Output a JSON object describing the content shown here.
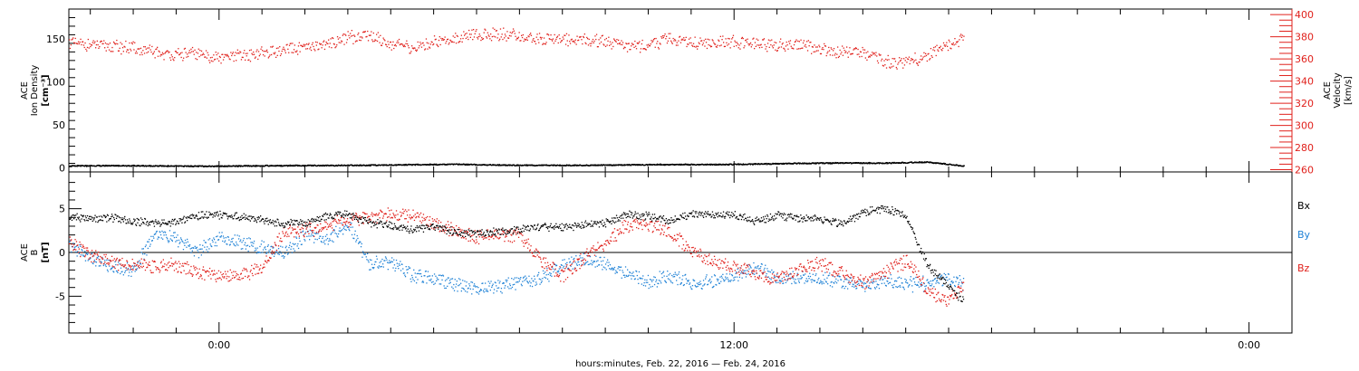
{
  "chart_data": [
    {
      "type": "scatter",
      "panel": "top",
      "ylabel_left": [
        "ACE",
        "Ion Density",
        "[cm⁻³]"
      ],
      "ylabel_right": [
        "ACE",
        "Velocity",
        "[km/s]"
      ],
      "ylim_left": [
        -5,
        185
      ],
      "yticks_left": [
        0,
        50,
        100,
        150
      ],
      "ylim_right": [
        258,
        405
      ],
      "yticks_right": [
        260,
        280,
        300,
        320,
        340,
        360,
        380,
        400
      ],
      "colors": {
        "density": "#000000",
        "velocity": "#e0201b"
      },
      "series": [
        {
          "name": "Ion Density",
          "axis": "left",
          "x_hours": [
            -7,
            -5,
            -3,
            -1,
            1,
            3,
            5,
            7,
            9,
            11,
            13,
            15,
            17,
            19,
            21,
            23,
            25,
            27,
            29,
            31,
            33,
            34.7
          ],
          "y": [
            2.5,
            3.0,
            2.6,
            2.3,
            2.5,
            3.0,
            3.1,
            3.4,
            4.0,
            4.5,
            3.6,
            3.3,
            3.3,
            3.9,
            4.2,
            4.2,
            4.8,
            5.6,
            6.1,
            5.9,
            7.1,
            2.5
          ]
        },
        {
          "name": "Velocity",
          "axis": "right",
          "x_hours": [
            -7,
            -6,
            -5,
            -4,
            -3,
            -2,
            -1,
            0,
            1,
            2,
            3,
            4,
            5,
            6,
            7,
            8,
            9,
            10,
            11,
            12,
            13,
            14,
            15,
            16,
            17,
            18,
            19,
            20,
            21,
            22,
            23,
            24,
            25,
            26,
            27,
            28,
            29,
            30,
            31,
            32,
            33,
            34,
            34.7
          ],
          "y": [
            375,
            373,
            372,
            370,
            366,
            364,
            365,
            361,
            363,
            366,
            368,
            370,
            374,
            380,
            382,
            374,
            370,
            376,
            379,
            382,
            383,
            381,
            378,
            379,
            377,
            376,
            372,
            373,
            379,
            375,
            374,
            376,
            374,
            372,
            374,
            370,
            366,
            365,
            358,
            357,
            364,
            374,
            379
          ]
        }
      ]
    },
    {
      "type": "scatter",
      "panel": "bottom",
      "ylabel": [
        "ACE",
        "B",
        "[nT]"
      ],
      "ylim": [
        -9.2,
        9.2
      ],
      "yticks": [
        -5,
        0,
        5
      ],
      "zero_line": true,
      "colors": {
        "Bx": "#000000",
        "By": "#1f82d6",
        "Bz": "#e0201b"
      },
      "legend": [
        "Bx",
        "By",
        "Bz"
      ],
      "legend_position": "right",
      "series": [
        {
          "name": "Bx",
          "x_hours": [
            -7,
            -6,
            -5,
            -4,
            -3,
            -2,
            -1,
            0,
            1,
            2,
            3,
            4,
            5,
            6,
            7,
            8,
            9,
            10,
            11,
            12,
            13,
            14,
            15,
            16,
            17,
            18,
            19,
            20,
            21,
            22,
            23,
            24,
            25,
            26,
            27,
            28,
            29,
            30,
            31,
            32,
            33,
            34,
            34.7
          ],
          "y": [
            4.1,
            3.9,
            4.0,
            3.6,
            3.4,
            3.6,
            4.2,
            4.4,
            4.1,
            3.8,
            3.3,
            3.5,
            4.2,
            4.4,
            3.5,
            3.1,
            2.6,
            3.0,
            2.4,
            2.2,
            2.4,
            2.7,
            3.0,
            2.9,
            3.2,
            3.4,
            4.4,
            4.2,
            3.6,
            4.5,
            4.2,
            4.4,
            3.6,
            4.3,
            4.0,
            3.9,
            3.3,
            4.6,
            5.1,
            4.2,
            -1.5,
            -3.8,
            -5.6
          ]
        },
        {
          "name": "By",
          "x_hours": [
            -7,
            -6,
            -5,
            -4,
            -3,
            -2,
            -1,
            0,
            1,
            2,
            3,
            4,
            5,
            6,
            7,
            8,
            9,
            10,
            11,
            12,
            13,
            14,
            15,
            16,
            17,
            18,
            19,
            20,
            21,
            22,
            23,
            24,
            25,
            26,
            27,
            28,
            29,
            30,
            31,
            32,
            33,
            34,
            34.7
          ],
          "y": [
            1.0,
            -0.6,
            -1.5,
            -2.0,
            2.3,
            1.5,
            0.2,
            1.8,
            1.2,
            0.5,
            0.1,
            2.0,
            1.6,
            3.3,
            -1.2,
            -1.0,
            -2.6,
            -2.8,
            -3.6,
            -4.1,
            -3.8,
            -3.2,
            -3.0,
            -1.4,
            -0.6,
            -1.3,
            -2.3,
            -3.4,
            -2.5,
            -3.6,
            -3.1,
            -2.5,
            -1.7,
            -2.9,
            -2.7,
            -2.9,
            -3.3,
            -3.9,
            -3.1,
            -3.6,
            -3.5,
            -2.8,
            -3.6
          ]
        },
        {
          "name": "Bz",
          "x_hours": [
            -7,
            -6,
            -5,
            -4,
            -3,
            -2,
            -1,
            0,
            1,
            2,
            3,
            4,
            5,
            6,
            7,
            8,
            9,
            10,
            11,
            12,
            13,
            14,
            15,
            16,
            17,
            18,
            19,
            20,
            21,
            22,
            23,
            24,
            25,
            26,
            27,
            28,
            29,
            30,
            31,
            32,
            33,
            34,
            34.7
          ],
          "y": [
            1.2,
            -0.3,
            -1.0,
            -1.4,
            -1.6,
            -1.4,
            -2.2,
            -2.6,
            -2.5,
            -1.8,
            2.4,
            2.6,
            3.1,
            3.8,
            4.1,
            4.3,
            4.4,
            3.3,
            2.5,
            1.8,
            2.2,
            2.0,
            -0.9,
            -2.5,
            -0.6,
            1.2,
            3.2,
            3.3,
            2.4,
            0.3,
            -0.9,
            -1.5,
            -2.4,
            -3.1,
            -1.8,
            -1.2,
            -2.3,
            -3.5,
            -2.2,
            -0.9,
            -4.2,
            -5.6,
            -3.6
          ]
        }
      ]
    }
  ],
  "xaxis": {
    "label": "hours:minutes, Feb. 22, 2016 — Feb. 24, 2016",
    "xlim_hours": [
      -7,
      50
    ],
    "tick_labels": [
      {
        "hour": 0,
        "text": "0:00"
      },
      {
        "hour": 24,
        "text": "12:00"
      },
      {
        "hour": 48,
        "text": "0:00"
      }
    ]
  }
}
